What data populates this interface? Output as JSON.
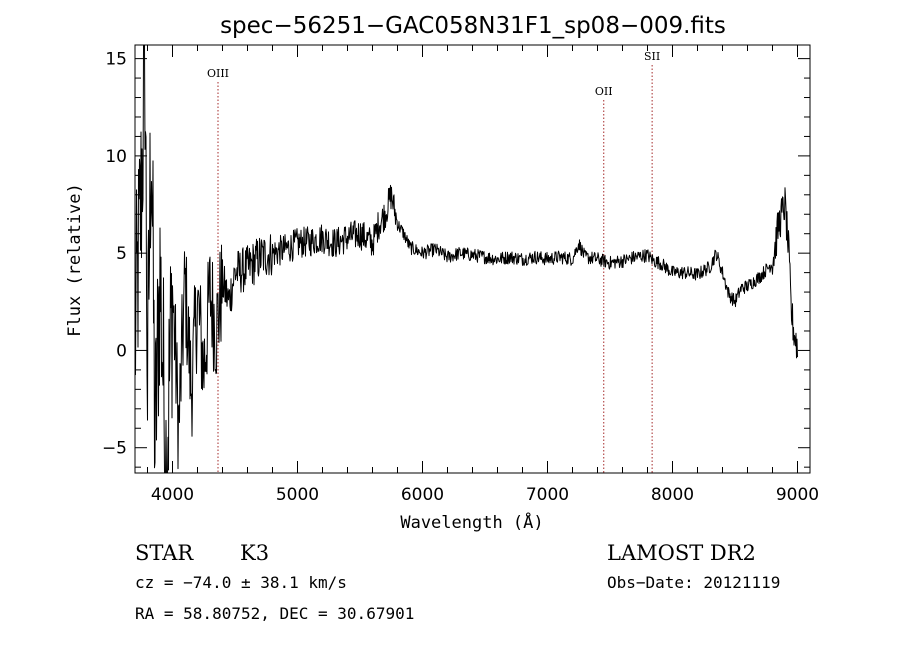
{
  "chart_data": {
    "type": "line",
    "title": "spec−56251−GAC058N31F1_sp08−009.fits",
    "xlabel": "Wavelength (Å)",
    "ylabel": "Flux (relative)",
    "xlim": [
      3700,
      9100
    ],
    "ylim": [
      -6.3,
      15.7
    ],
    "x_ticks": [
      4000,
      5000,
      6000,
      7000,
      8000,
      9000
    ],
    "y_ticks": [
      -5,
      0,
      5,
      10,
      15
    ],
    "grid": false,
    "series": [
      {
        "color": "#000000",
        "x": [
          3700,
          3750,
          3780,
          3800,
          3830,
          3860,
          3900,
          3950,
          4000,
          4050,
          4100,
          4150,
          4200,
          4250,
          4300,
          4350,
          4400,
          4450,
          4500,
          4600,
          4700,
          4800,
          4900,
          5000,
          5100,
          5200,
          5300,
          5400,
          5500,
          5600,
          5650,
          5700,
          5750,
          5800,
          5850,
          5900,
          6000,
          6100,
          6200,
          6300,
          6400,
          6500,
          6600,
          6700,
          6800,
          6900,
          7000,
          7100,
          7200,
          7250,
          7300,
          7400,
          7500,
          7600,
          7700,
          7800,
          7850,
          7900,
          8000,
          8100,
          8200,
          8300,
          8350,
          8400,
          8450,
          8500,
          8550,
          8600,
          8700,
          8800,
          8850,
          8900,
          8930,
          8950,
          8970,
          8990,
          9000
        ],
        "y": [
          0.5,
          8.0,
          15.0,
          -2.0,
          12.0,
          -5.0,
          4.0,
          -6.0,
          3.0,
          -4.0,
          3.5,
          -2.0,
          2.5,
          -1.0,
          3.0,
          1.0,
          3.5,
          2.5,
          4.0,
          4.2,
          4.8,
          5.0,
          5.2,
          5.5,
          5.6,
          5.8,
          5.5,
          5.8,
          6.0,
          5.5,
          6.5,
          7.0,
          8.0,
          6.5,
          6.0,
          5.3,
          5.0,
          5.2,
          4.8,
          5.0,
          4.9,
          4.8,
          4.7,
          4.8,
          4.7,
          4.8,
          4.7,
          4.8,
          4.7,
          5.5,
          4.8,
          4.7,
          4.5,
          4.6,
          4.8,
          4.9,
          4.6,
          4.5,
          4.0,
          4.0,
          3.9,
          4.3,
          5.0,
          4.0,
          2.9,
          2.5,
          3.2,
          3.3,
          3.8,
          4.5,
          6.5,
          7.5,
          5.0,
          2.0,
          1.0,
          0.5,
          0.0
        ]
      }
    ],
    "emission_lines": [
      {
        "label": "OIII",
        "x": 4364
      },
      {
        "label": "OII",
        "x": 7450
      },
      {
        "label": "SII",
        "x": 7837
      }
    ],
    "annotations": {
      "object_class": "STAR",
      "subclass": "K3",
      "survey": "LAMOST DR2",
      "cz": "cz = −74.0 ± 38.1 km/s",
      "obs_date": "Obs−Date: 20121119",
      "coords": "RA =  58.80752, DEC =  30.67901"
    },
    "colors": {
      "spectrum": "#000000",
      "emission_line": "#a52a2a"
    }
  }
}
